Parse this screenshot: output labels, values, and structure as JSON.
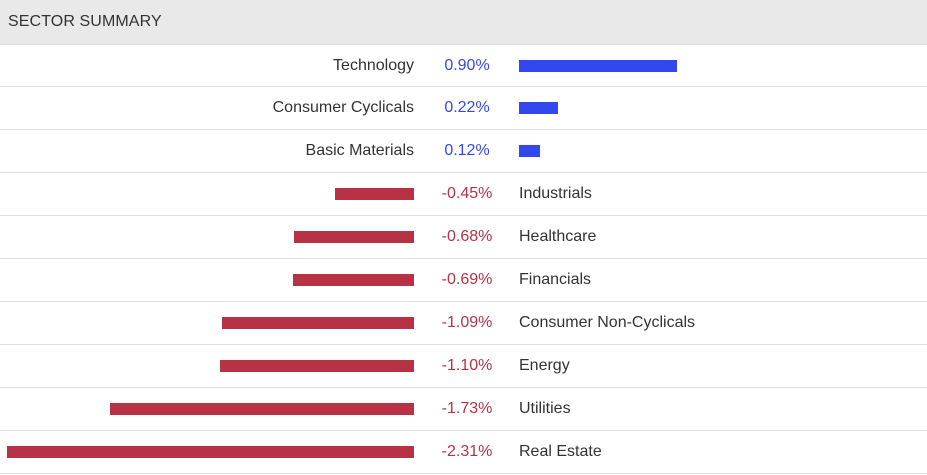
{
  "header": {
    "title": "SECTOR SUMMARY"
  },
  "colors": {
    "positive": "#3347ee",
    "negative": "#b73245",
    "header_bg": "#e9e9e9",
    "text": "#333333"
  },
  "chart_data": {
    "type": "bar",
    "orientation": "horizontal-diverging",
    "categories": [
      "Technology",
      "Consumer Cyclicals",
      "Basic Materials",
      "Industrials",
      "Healthcare",
      "Financials",
      "Consumer Non-Cyclicals",
      "Energy",
      "Utilities",
      "Real Estate"
    ],
    "values": [
      0.9,
      0.22,
      0.12,
      -0.45,
      -0.68,
      -0.69,
      -1.09,
      -1.1,
      -1.73,
      -2.31
    ],
    "value_labels": [
      "0.90%",
      "0.22%",
      "0.12%",
      "-0.45%",
      "-0.68%",
      "-0.69%",
      "-1.09%",
      "-1.10%",
      "-1.73%",
      "-2.31%"
    ],
    "title": "SECTOR SUMMARY",
    "xlabel": "",
    "ylabel": ""
  }
}
